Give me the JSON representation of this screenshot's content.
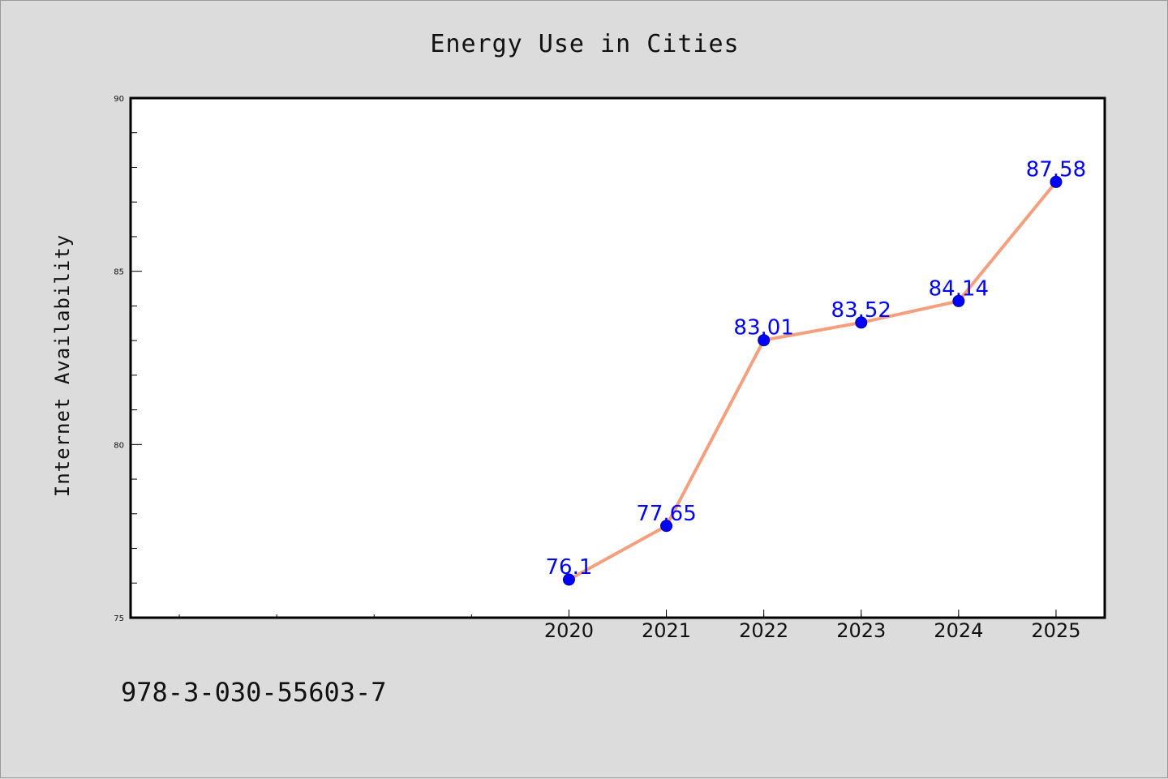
{
  "chart_data": {
    "type": "line",
    "title": "Energy Use in Cities",
    "xlabel": "",
    "ylabel": "Internet Availability",
    "x": [
      "2020",
      "2021",
      "2022",
      "2023",
      "2024",
      "2025"
    ],
    "series": [
      {
        "values": [
          76.1,
          77.65,
          83.01,
          83.52,
          84.14,
          87.58
        ],
        "labels": [
          "76.1",
          "77.65",
          "83.01",
          "83.52",
          "84.14",
          "87.58"
        ]
      }
    ],
    "ylim": [
      75,
      90
    ],
    "yticks": [
      "75",
      "80",
      "85",
      "90"
    ],
    "xlim": [
      2015.5,
      2025.5
    ],
    "grid": false,
    "legend": "none",
    "colors": {
      "line": "#f4a07e",
      "marker": "#0000ff",
      "marker_edge": "#00008b",
      "data_label": "#0000ff",
      "background": "#dcdcdc",
      "plot_area": "#ffffff"
    }
  },
  "footer": {
    "isbn": "978-3-030-55603-7"
  }
}
